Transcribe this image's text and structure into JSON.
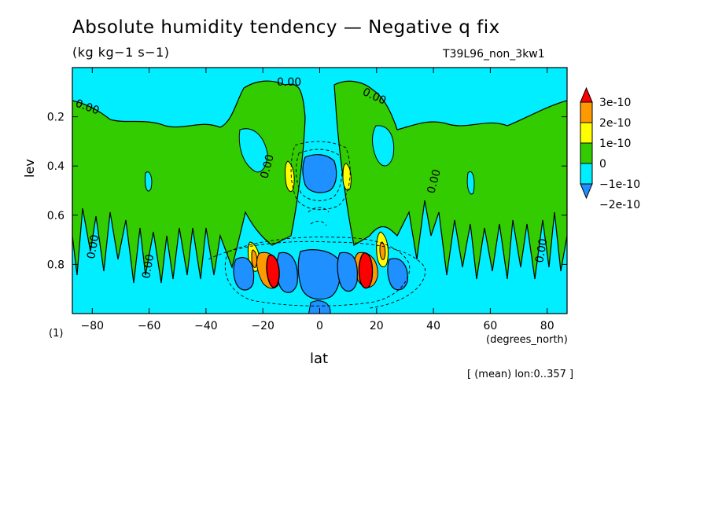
{
  "header": {
    "title": "Absolute humidity tendency — Negative q fix",
    "units": "(kg kg−1 s−1)",
    "run": "T39L96_non_3kw1",
    "ylabel": "lev",
    "xlabel": "lat",
    "xunits": "(degrees_north)",
    "level_note": "(1)",
    "mean_note": "[ (mean) lon:0..357 ]",
    "zero_label": "0.00"
  },
  "chart_data": {
    "type": "heatmap",
    "title": "Absolute humidity tendency — Negative q fix",
    "subtitle": "(kg kg−1 s−1)",
    "xlabel": "lat",
    "ylabel": "lev",
    "xlim": [
      -87,
      87
    ],
    "ylim": [
      0.0,
      1.0
    ],
    "y_inverted": true,
    "x_ticks": [
      "−80",
      "−60",
      "−40",
      "−20",
      "0",
      "20",
      "40",
      "60",
      "80"
    ],
    "x_tick_values": [
      -80,
      -60,
      -40,
      -20,
      0,
      20,
      40,
      60,
      80
    ],
    "y_ticks": [
      "0.2",
      "0.4",
      "0.6",
      "0.8"
    ],
    "y_tick_values": [
      0.2,
      0.4,
      0.6,
      0.8
    ],
    "colorbar_labels": [
      "3e-10",
      "2e-10",
      "1e-10",
      "0",
      "−1e-10",
      "−2e-10"
    ],
    "colorbar_colors": [
      "#ff0000",
      "#ff9900",
      "#ffff00",
      "#33cc00",
      "#00eeff",
      "#1e90ff"
    ],
    "contour_label": "0.00",
    "background_color": "#00eeff"
  }
}
